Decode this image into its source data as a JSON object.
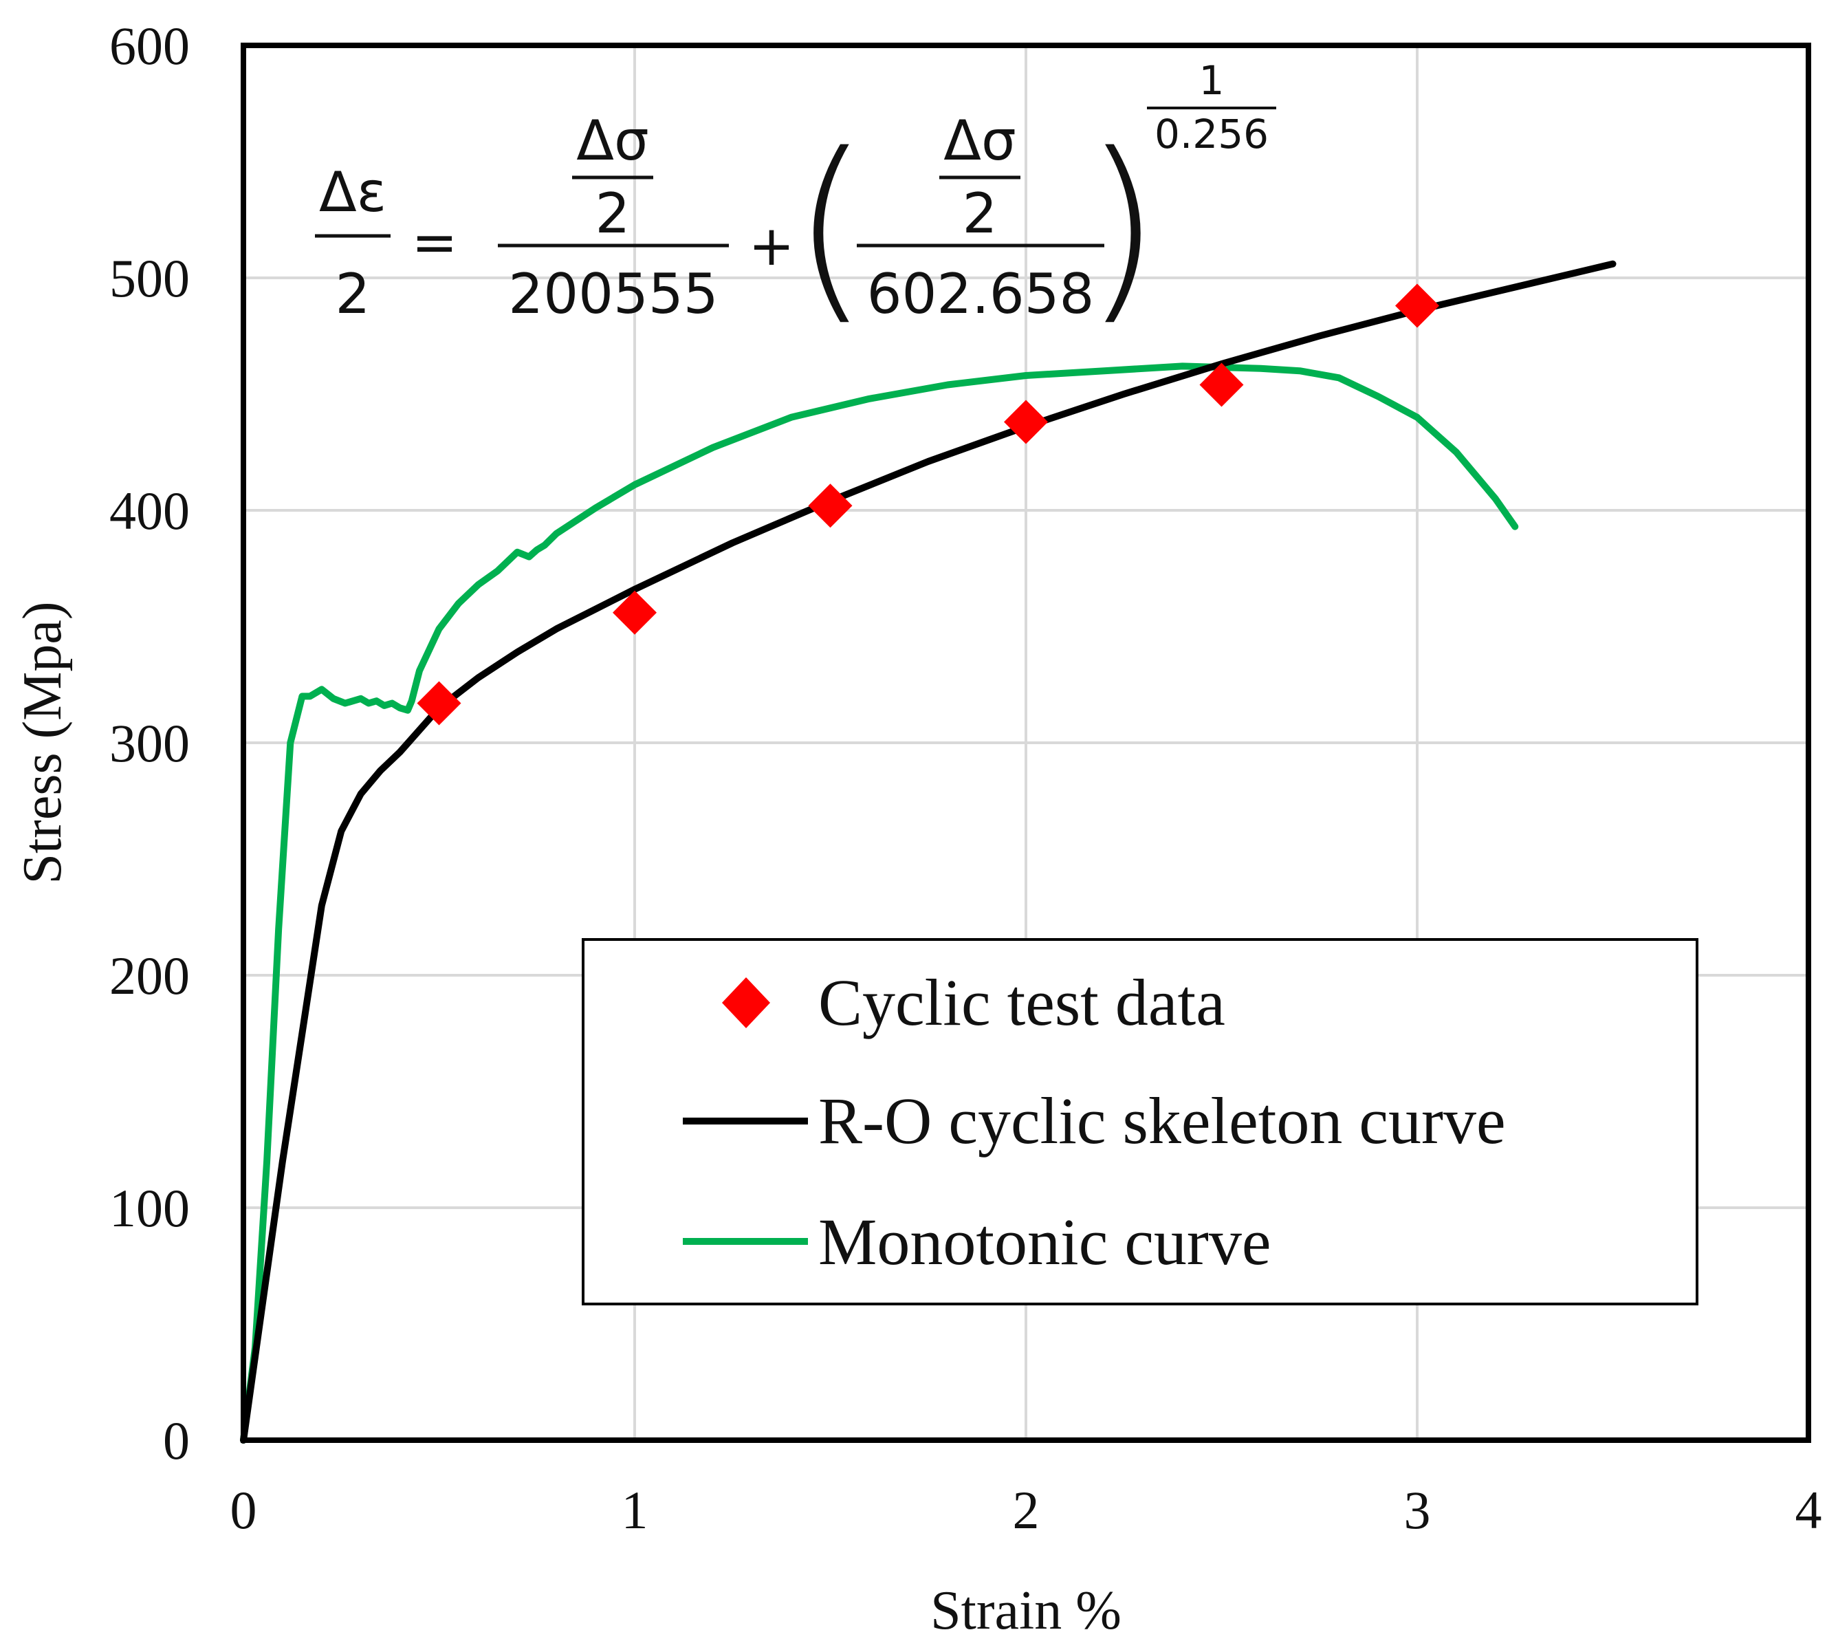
{
  "chart_data": {
    "type": "line",
    "xlabel": "Strain %",
    "ylabel": "Stress (Mpa)",
    "xlim": [
      0,
      4
    ],
    "ylim": [
      0,
      600
    ],
    "x_ticks": [
      "0",
      "1",
      "2",
      "3",
      "4"
    ],
    "y_ticks": [
      "0",
      "100",
      "200",
      "300",
      "400",
      "500",
      "600"
    ],
    "grid": true,
    "legend_position": "bottom-right",
    "colors": {
      "cyclic": "#ff0000",
      "skeleton": "#000000",
      "monotonic": "#00b050"
    },
    "equation": {
      "lhs_num": "Δε",
      "lhs_den": "2",
      "equals": "=",
      "t1_num_top": "Δσ",
      "t1_num_bot": "2",
      "t1_den": "200555",
      "plus": "+",
      "t2_num_top": "Δσ",
      "t2_num_bot": "2",
      "t2_den": "602.658",
      "lparen": "(",
      "rparen": ")",
      "exp_num": "1",
      "exp_den": "0.256"
    },
    "series": [
      {
        "name": "Cyclic test data",
        "kind": "scatter",
        "marker": "diamond",
        "x": [
          0.5,
          1.0,
          1.5,
          2.0,
          2.5,
          3.0
        ],
        "y": [
          317,
          356,
          402,
          438,
          454,
          488
        ]
      },
      {
        "name": "R-O cyclic skeleton curve",
        "kind": "line",
        "x": [
          0,
          0.05,
          0.1,
          0.15,
          0.2,
          0.25,
          0.3,
          0.35,
          0.4,
          0.5,
          0.6,
          0.7,
          0.8,
          1.0,
          1.25,
          1.5,
          1.75,
          2.0,
          2.25,
          2.5,
          2.75,
          3.0,
          3.25,
          3.5
        ],
        "y": [
          0,
          60,
          120,
          175,
          230,
          262,
          278,
          288,
          296,
          315,
          328,
          339,
          349,
          366,
          386,
          404,
          421,
          436,
          450,
          463,
          475,
          486,
          496,
          506
        ]
      },
      {
        "name": "Monotonic curve",
        "kind": "line",
        "x": [
          0,
          0.03,
          0.06,
          0.09,
          0.12,
          0.15,
          0.17,
          0.2,
          0.23,
          0.26,
          0.28,
          0.3,
          0.32,
          0.34,
          0.36,
          0.38,
          0.4,
          0.42,
          0.43,
          0.45,
          0.5,
          0.55,
          0.6,
          0.65,
          0.7,
          0.73,
          0.75,
          0.77,
          0.8,
          0.9,
          1.0,
          1.2,
          1.4,
          1.6,
          1.8,
          2.0,
          2.2,
          2.4,
          2.6,
          2.7,
          2.8,
          2.9,
          3.0,
          3.1,
          3.2,
          3.25
        ],
        "y": [
          0,
          40,
          120,
          220,
          300,
          320,
          320,
          323,
          319,
          317,
          318,
          319,
          317,
          318,
          316,
          317,
          315,
          314,
          318,
          331,
          349,
          360,
          368,
          374,
          382,
          380,
          383,
          385,
          390,
          401,
          411,
          427,
          440,
          448,
          454,
          458,
          460,
          462,
          461,
          460,
          457,
          449,
          440,
          425,
          405,
          393
        ]
      }
    ]
  }
}
